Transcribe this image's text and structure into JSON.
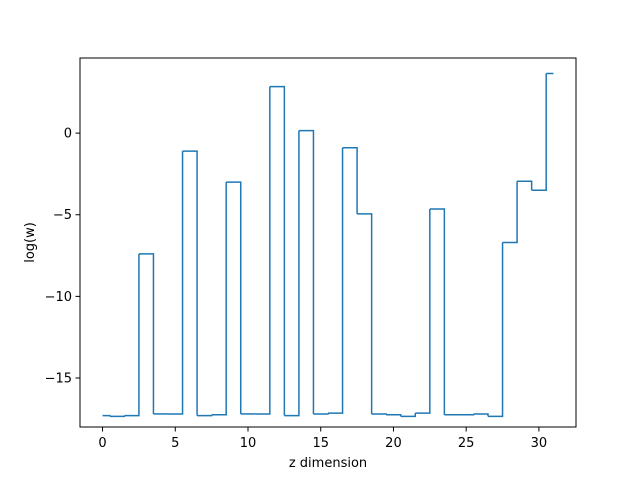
{
  "chart_data": {
    "type": "line",
    "drawstyle": "steps-mid",
    "title": "",
    "xlabel": "z dimension",
    "ylabel": "log(w)",
    "xlim": [
      -1.55,
      32.55
    ],
    "ylim": [
      -18.0,
      4.6
    ],
    "xticks": [
      0,
      5,
      10,
      15,
      20,
      25,
      30
    ],
    "yticks": [
      -15,
      -10,
      -5,
      0
    ],
    "ytick_labels": [
      "−15",
      "−10",
      "−5",
      "0"
    ],
    "grid": false,
    "line_color": "#1f77b4",
    "series": [
      {
        "x": [
          0,
          1,
          2,
          3,
          4,
          5,
          6,
          7,
          8,
          9,
          10,
          11,
          12,
          13,
          14,
          15,
          16,
          17,
          18,
          19,
          20,
          21,
          22,
          23,
          24,
          25,
          26,
          27,
          28,
          29,
          30,
          31
        ],
        "values": [
          -17.3,
          -17.35,
          -17.3,
          -7.4,
          -17.2,
          -17.2,
          -1.1,
          -17.3,
          -17.25,
          -3.0,
          -17.2,
          -17.2,
          2.85,
          -17.3,
          0.15,
          -17.2,
          -17.15,
          -0.9,
          -4.95,
          -17.2,
          -17.25,
          -17.35,
          -17.15,
          -4.65,
          -17.25,
          -17.25,
          -17.2,
          -17.35,
          -6.7,
          -2.95,
          -3.5,
          3.65
        ]
      }
    ]
  }
}
